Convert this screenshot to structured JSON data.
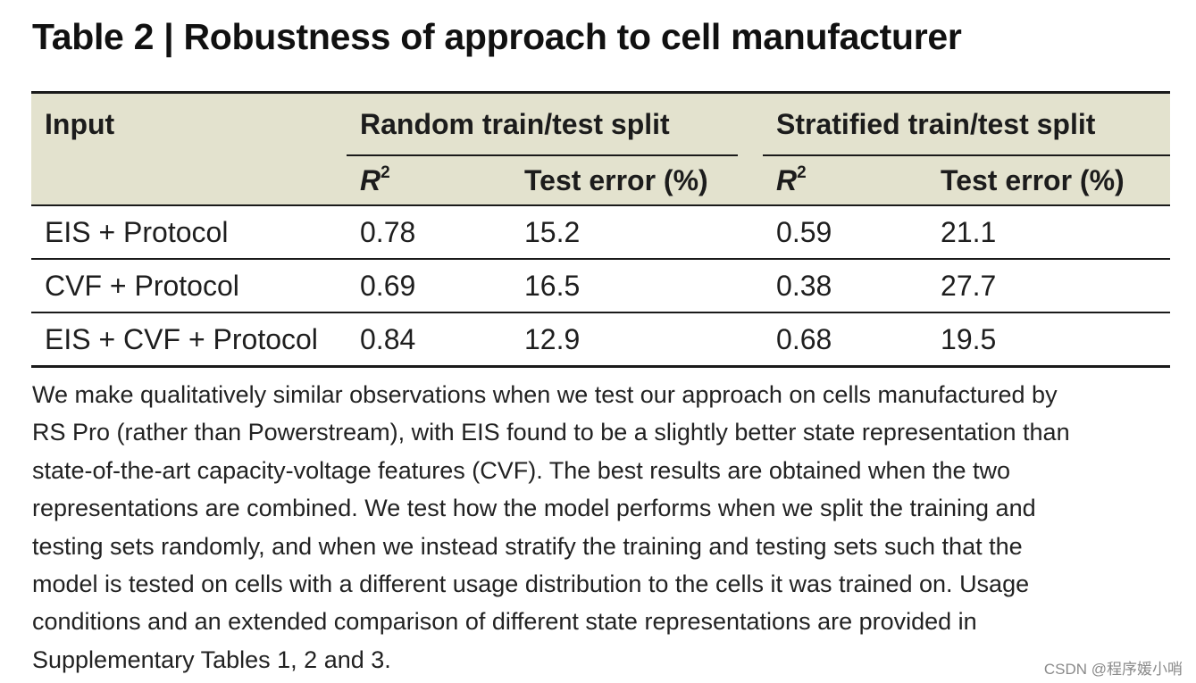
{
  "title": "Table 2 | Robustness of approach to cell manufacturer",
  "table": {
    "input_header": "Input",
    "group_random": "Random train/test split",
    "group_stratified": "Stratified train/test split",
    "r2_label": "R",
    "r2_sup": "2",
    "test_error_label": "Test error (%)",
    "rows": [
      {
        "input": "EIS + Protocol",
        "random_r2": "0.78",
        "random_err": "15.2",
        "strat_r2": "0.59",
        "strat_err": "21.1"
      },
      {
        "input": "CVF + Protocol",
        "random_r2": "0.69",
        "random_err": "16.5",
        "strat_r2": "0.38",
        "strat_err": "27.7"
      },
      {
        "input": "EIS + CVF + Protocol",
        "random_r2": "0.84",
        "random_err": "12.9",
        "strat_r2": "0.68",
        "strat_err": "19.5"
      }
    ]
  },
  "caption_lines": [
    "We make qualitatively similar observations when we test our approach on cells manufactured by",
    "RS Pro (rather than Powerstream), with EIS found to be a slightly better state representation than",
    "state-of-the-art capacity-voltage features (CVF). The best results are obtained when the two",
    "representations are combined. We test how the model performs when we split the training and",
    "testing sets randomly, and when we instead stratify the training and testing sets such that the",
    "model is tested on cells with a different usage distribution to the cells it was trained on. Usage",
    "conditions and an extended comparison of different state representations are provided in",
    "Supplementary Tables 1, 2 and 3."
  ],
  "watermark": "CSDN @程序媛小哨"
}
